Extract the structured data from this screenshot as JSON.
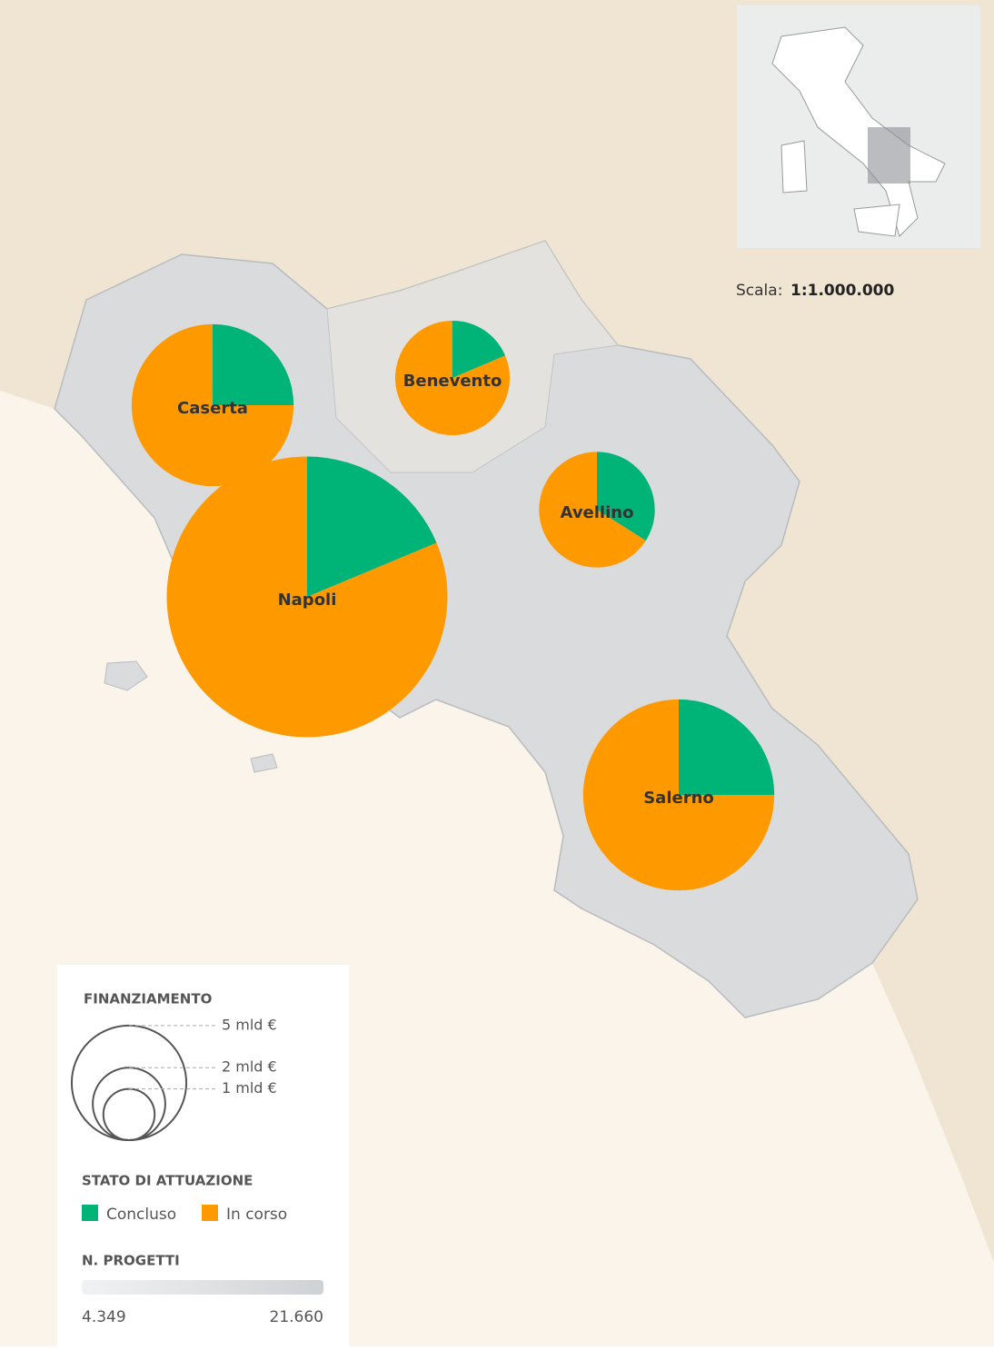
{
  "chart_data": {
    "type": "pie",
    "categories": [
      "Caserta",
      "Benevento",
      "Napoli",
      "Avellino",
      "Salerno"
    ],
    "series": [
      {
        "name": "Concluso",
        "color": "#00b377",
        "values": [
          25,
          18.6,
          18.7,
          34,
          25
        ]
      },
      {
        "name": "In corso",
        "color": "#ff9900",
        "values": [
          75,
          81.4,
          81.3,
          66,
          75
        ]
      }
    ],
    "sizes": [
      10,
      5,
      30,
      5.1,
      13.9
    ],
    "size_title": "FINANZIAMENTO",
    "size_legend": [
      {
        "value": 5,
        "label": "5 mld €"
      },
      {
        "value": 2,
        "label": "2 mld €"
      },
      {
        "value": 1,
        "label": "1 mld €"
      }
    ],
    "legend_title": "STATO DI ATTUAZIONE",
    "count_title": "N. PROGETTI",
    "count_range": [
      {
        "value": 4349,
        "label": "4.349"
      },
      {
        "value": 21660,
        "label": "21.660"
      }
    ],
    "scale_label": "Scala:",
    "scale_value": "1:1.000.000"
  }
}
